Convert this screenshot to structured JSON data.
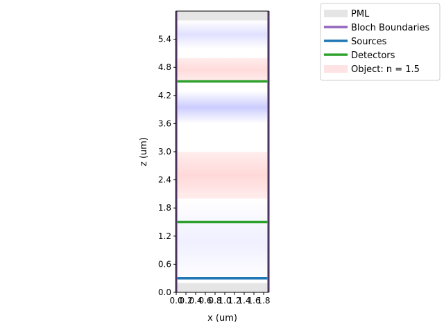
{
  "chart_data": {
    "type": "simulation-domain",
    "title": "",
    "xlabel": "x (um)",
    "ylabel": "z (um)",
    "xlim": [
      0.0,
      1.9
    ],
    "ylim": [
      0.0,
      6.0
    ],
    "xticks": [
      0.0,
      0.2,
      0.4,
      0.6,
      0.8,
      1.0,
      1.2,
      1.4,
      1.6,
      1.8
    ],
    "xtick_labels": [
      "0.0",
      "0.2",
      "0.4",
      "0.6",
      "0.8",
      "1.0",
      "1.2",
      "1.4",
      "1.6",
      "1.8"
    ],
    "yticks": [
      0.0,
      0.6,
      1.2,
      1.8,
      2.4,
      3.0,
      3.6,
      4.2,
      4.8,
      5.4
    ],
    "ytick_labels": [
      "0.0",
      "0.6",
      "1.2",
      "1.8",
      "2.4",
      "3.0",
      "3.6",
      "4.2",
      "4.8",
      "5.4"
    ],
    "pml": [
      {
        "z_min": 0.0,
        "z_max": 0.2
      },
      {
        "z_min": 5.8,
        "z_max": 6.0
      }
    ],
    "bloch_boundaries": [
      {
        "x": 0.0
      },
      {
        "x": 1.9
      }
    ],
    "sources": [
      {
        "z": 0.3
      }
    ],
    "detectors": [
      {
        "z": 1.5
      },
      {
        "z": 4.5
      }
    ],
    "objects": [
      {
        "z_min": 2.0,
        "z_max": 3.0,
        "n": 1.5
      },
      {
        "z_min": 4.5,
        "z_max": 5.0,
        "n": 1.5
      }
    ],
    "field_bands": [
      {
        "z_min": 0.2,
        "z_max": 2.0,
        "tone": "blue",
        "strength": 0.06
      },
      {
        "z_min": 2.0,
        "z_max": 3.0,
        "tone": "red",
        "strength": 0.18
      },
      {
        "z_min": 3.6,
        "z_max": 4.3,
        "tone": "blue",
        "strength": 0.2
      },
      {
        "z_min": 4.5,
        "z_max": 5.0,
        "tone": "red",
        "strength": 0.16
      },
      {
        "z_min": 5.2,
        "z_max": 5.8,
        "tone": "blue",
        "strength": 0.12
      }
    ],
    "legend": {
      "placement": "top-right",
      "entries": [
        {
          "label": "PML",
          "kind": "patch",
          "color": "#e5e5e5"
        },
        {
          "label": "Bloch Boundaries",
          "kind": "line",
          "color": "#9467bd"
        },
        {
          "label": "Sources",
          "kind": "line",
          "color": "#1f77b4"
        },
        {
          "label": "Detectors",
          "kind": "line",
          "color": "#2ca02c"
        },
        {
          "label": "Object: n = 1.5",
          "kind": "patch",
          "color": "#fde3e3"
        }
      ]
    },
    "colors": {
      "pml": "#e5e5e5",
      "bloch": "#9467bd",
      "source": "#1f77b4",
      "detector": "#2ca02c",
      "object": "#ffdede",
      "field_blue": "#0000ff",
      "field_red": "#ff0000"
    }
  }
}
